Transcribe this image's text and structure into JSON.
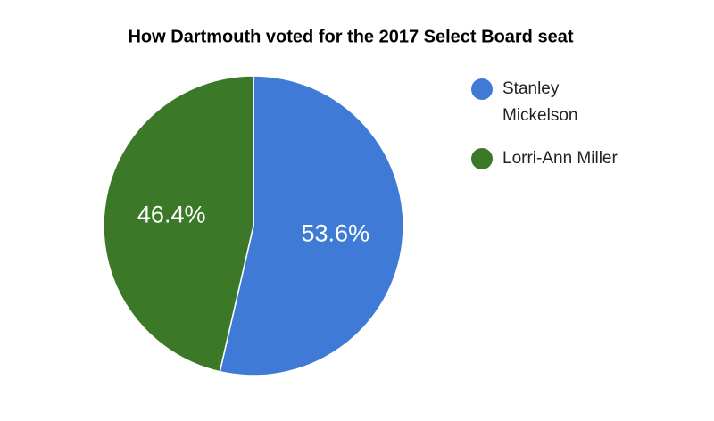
{
  "chart_data": {
    "type": "pie",
    "title": "How Dartmouth voted for the 2017 Select Board seat",
    "categories": [
      "Stanley Mickelson",
      "Lorri-Ann Miller"
    ],
    "values": [
      53.6,
      46.4
    ],
    "value_labels": [
      "53.6%",
      "46.4%"
    ],
    "colors": [
      "#3f7bd6",
      "#3b7827"
    ],
    "legend": "right"
  }
}
